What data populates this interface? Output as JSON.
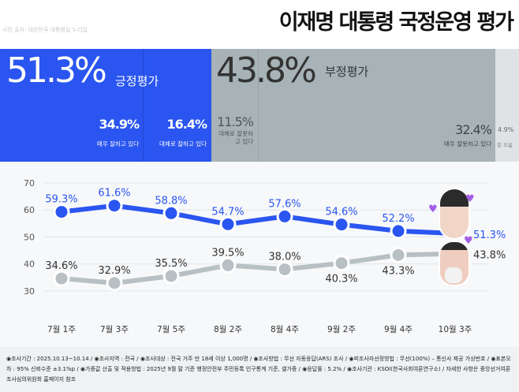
{
  "header": {
    "title": "이재명 대통령 국정운영 평가",
    "credit": "사진 출처: 대한민국 대통령실 누리집"
  },
  "summary": {
    "positive": {
      "value": "51.3%",
      "label": "긍정평가",
      "color": "#2a55f0",
      "parts": [
        {
          "value": "34.9%",
          "label": "매우 잘하고 있다"
        },
        {
          "value": "16.4%",
          "label": "대체로 잘하고 있다"
        }
      ]
    },
    "negative": {
      "value": "43.8%",
      "label": "부정평가",
      "color": "#a7b3b7",
      "parts": [
        {
          "value": "11.5%",
          "label": "대체로 잘못하고 있다"
        },
        {
          "value": "32.4%",
          "label": "매우 잘못하고 있다"
        }
      ]
    },
    "unknown": {
      "value": "4.9%",
      "label": "잘 모름",
      "color": "#dfe3e5"
    }
  },
  "chart_data": {
    "type": "line",
    "categories": [
      "7월 1주",
      "7월 3주",
      "7월 5주",
      "8월 2주",
      "8월 4주",
      "9월 2주",
      "9월 4주",
      "10월 3주"
    ],
    "yticks": [
      70,
      60,
      50,
      40,
      30
    ],
    "ylim": [
      30,
      70
    ],
    "grid": true,
    "series": [
      {
        "key": "positive",
        "color": "#2a55f0",
        "values": [
          59.3,
          61.6,
          58.8,
          54.7,
          57.6,
          54.6,
          52.2,
          51.3
        ],
        "labels": [
          "59.3%",
          "61.6%",
          "58.8%",
          "54.7%",
          "57.6%",
          "54.6%",
          "52.2%",
          "51.3%"
        ]
      },
      {
        "key": "negative",
        "color": "#b8c0c4",
        "values": [
          34.6,
          32.9,
          35.5,
          39.5,
          38.0,
          40.3,
          43.3,
          43.8
        ],
        "labels": [
          "34.6%",
          "32.9%",
          "35.5%",
          "39.5%",
          "38.0%",
          "40.3%",
          "43.3%",
          "43.8%"
        ]
      }
    ]
  },
  "footer": {
    "text": "◉조사기간 : 2025.10.13~10.14 / ◉조사지역 : 전국 / ◉조사대상 : 전국 거주 만 18세 이상 1,000명 / ◉조사방법 : 무선 자동응답(ARS) 조사 / ◉피조사자선정방법 : 무선(100%) – 통신사 제공 가상번호 / ◉표본오차 : 95% 신뢰수준 ±3.1%p / ◉가중값 산출 및 적용방법 : 2025년 9월 말 기준 행정안전부 주민등록 인구통계 기준, 셀가중 / ◉응답률 : 5.2% / ◉조사기관 : KSOI(한국사회여론연구소) / 자세한 사항은 중앙선거여론조사심의위원회 홈페이지 참조"
  }
}
